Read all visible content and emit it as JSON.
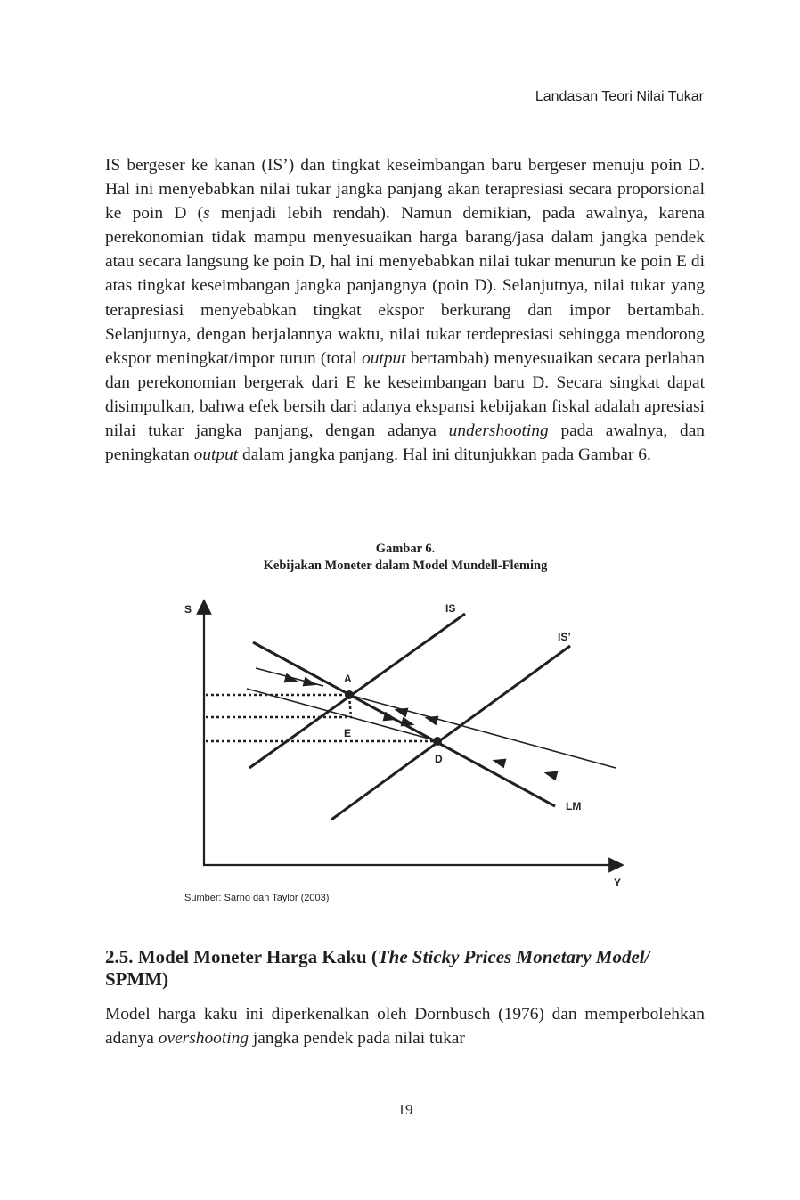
{
  "running_head": "Landasan Teori Nilai Tukar",
  "paragraph1": [
    {
      "t": "IS bergeser ke kanan (IS’) dan tingkat keseimbangan baru bergeser menuju poin D. Hal ini menyebabkan nilai tukar jangka panjang akan terapresiasi secara proporsional ke poin D ("
    },
    {
      "t": "s",
      "i": true
    },
    {
      "t": " menjadi lebih rendah). Namun demikian, pada awalnya, karena perekonomian tidak mampu menyesuaikan harga barang/jasa dalam jangka pendek atau secara langsung ke poin D, hal ini menyebabkan nilai tukar menurun ke poin E di atas tingkat keseimbangan jangka panjangnya (poin D). Selanjutnya, nilai tukar yang terapresiasi menyebabkan tingkat ekspor berkurang dan impor bertambah. Selanjutnya, dengan berjalannya waktu, nilai tukar terdepresiasi sehingga mendorong ekspor meningkat/impor turun (total "
    },
    {
      "t": "output",
      "i": true
    },
    {
      "t": " bertambah) menyesuaikan secara perlahan dan perekonomian bergerak dari E ke keseimbangan baru D. Secara singkat dapat disimpulkan, bahwa efek bersih dari adanya ekspansi kebijakan fiskal adalah apresiasi nilai tukar jangka panjang, dengan adanya "
    },
    {
      "t": "undershooting",
      "i": true
    },
    {
      "t": " pada awalnya, dan peningkatan "
    },
    {
      "t": "output",
      "i": true
    },
    {
      "t": " dalam jangka panjang. Hal ini ditunjukkan pada Gambar 6."
    }
  ],
  "figure": {
    "number": "Gambar 6.",
    "title": "Kebijakan Moneter dalam Model Mundell-Fleming",
    "y_axis_label": "S",
    "x_axis_label": "Y",
    "curve_labels": {
      "is": "IS",
      "is_prime": "IS’",
      "lm": "LM"
    },
    "point_labels": {
      "a": "A",
      "e": "E",
      "d": "D"
    },
    "source": "Sumber: Sarno dan Taylor (2003)"
  },
  "section": {
    "heading": [
      {
        "t": "2.5. Model Moneter Harga Kaku ("
      },
      {
        "t": "The Sticky Prices Monetary Model/",
        "i": true
      },
      {
        "t": " SPMM)"
      }
    ]
  },
  "paragraph2": [
    {
      "t": "Model harga kaku ini diperkenalkan oleh Dornbusch (1976) dan memperbolehkan adanya "
    },
    {
      "t": "overshooting",
      "i": true
    },
    {
      "t": " jangka pendek pada nilai tukar"
    }
  ],
  "page_number": "19"
}
